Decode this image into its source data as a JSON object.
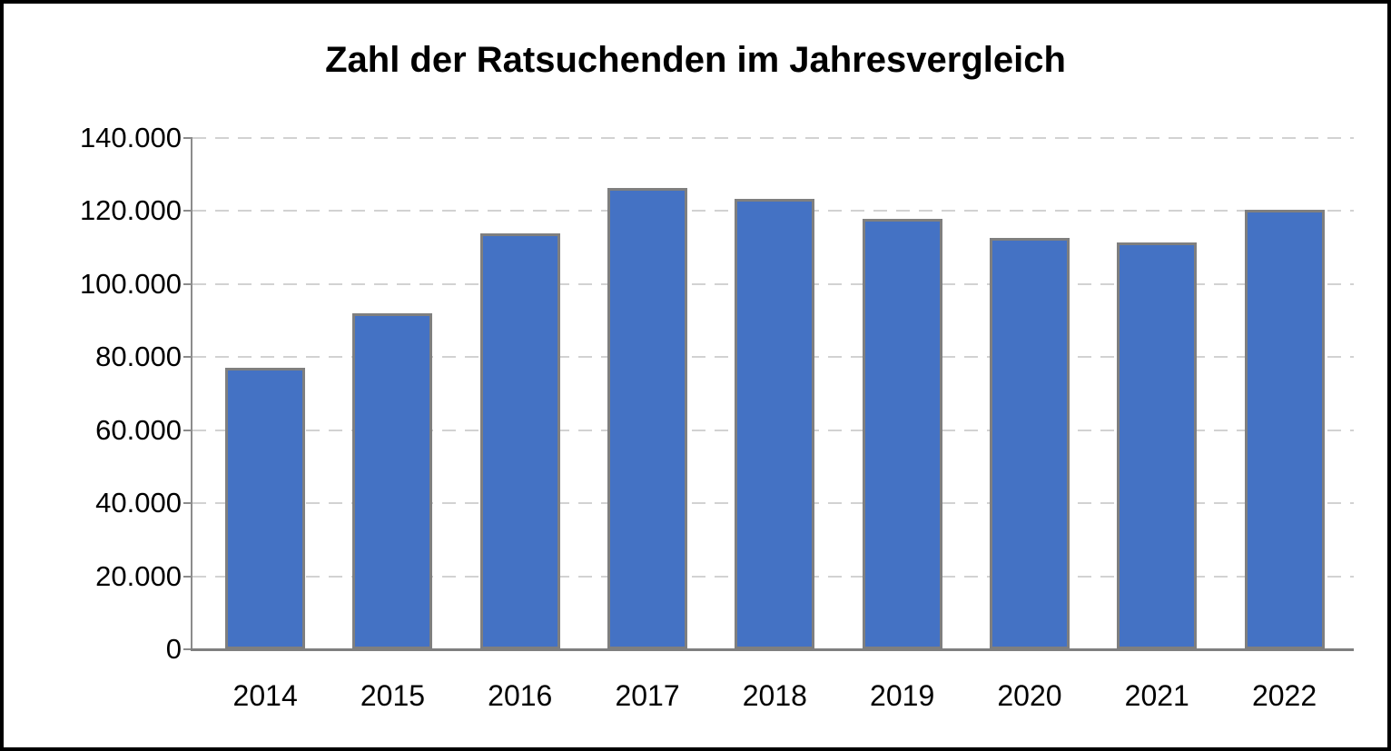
{
  "title": "Zahl der Ratsuchenden im Jahresvergleich",
  "chart_data": {
    "type": "bar",
    "title": "Zahl der Ratsuchenden im Jahresvergleich",
    "categories": [
      "2014",
      "2015",
      "2016",
      "2017",
      "2018",
      "2019",
      "2020",
      "2021",
      "2022"
    ],
    "values": [
      77000,
      92000,
      114000,
      126300,
      123400,
      117900,
      112600,
      111500,
      120300
    ],
    "xlabel": "",
    "ylabel": "",
    "ylim": [
      0,
      140000
    ],
    "ytick_interval": 20000,
    "ytick_labels": [
      "0",
      "20.000",
      "40.000",
      "60.000",
      "80.000",
      "100.000",
      "120.000",
      "140.000"
    ],
    "grid": "horizontal-dashed",
    "legend": "none",
    "colors": {
      "bar_fill": "#4472C4",
      "bar_border": "#7F7F7F",
      "gridline": "#D2D2D2",
      "axis": "#8C8C8C",
      "baseline": "#7F7F7F",
      "text": "#000000",
      "background": "#FFFFFF",
      "frame_border": "#000000"
    }
  }
}
